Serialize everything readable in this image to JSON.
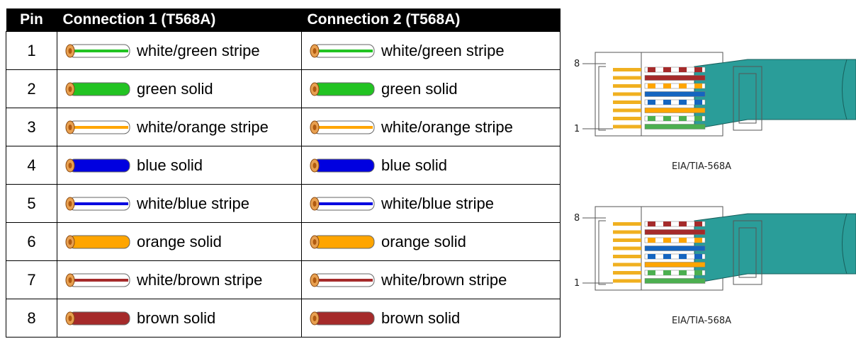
{
  "header": [
    "Pin",
    "Connection 1 (T568A)",
    "Connection 2 (T568A)"
  ],
  "table": {
    "rows": [
      [
        "1",
        "white/green stripe",
        "white/green stripe"
      ],
      [
        "2",
        "green solid",
        "green solid"
      ],
      [
        "3",
        "white/orange stripe",
        "white/orange stripe"
      ],
      [
        "4",
        "blue solid",
        "blue solid"
      ],
      [
        "5",
        "white/blue stripe",
        "white/blue stripe"
      ],
      [
        "6",
        "orange solid",
        "orange solid"
      ],
      [
        "7",
        "white/brown stripe",
        "white/brown stripe"
      ],
      [
        "8",
        "brown solid",
        "brown solid"
      ]
    ]
  },
  "figures": [
    {
      "top_label": "8",
      "bottom_label": "1",
      "caption": "EIA/TIA-568A"
    },
    {
      "top_label": "8",
      "bottom_label": "1",
      "caption": "EIA/TIA-568A"
    }
  ]
}
